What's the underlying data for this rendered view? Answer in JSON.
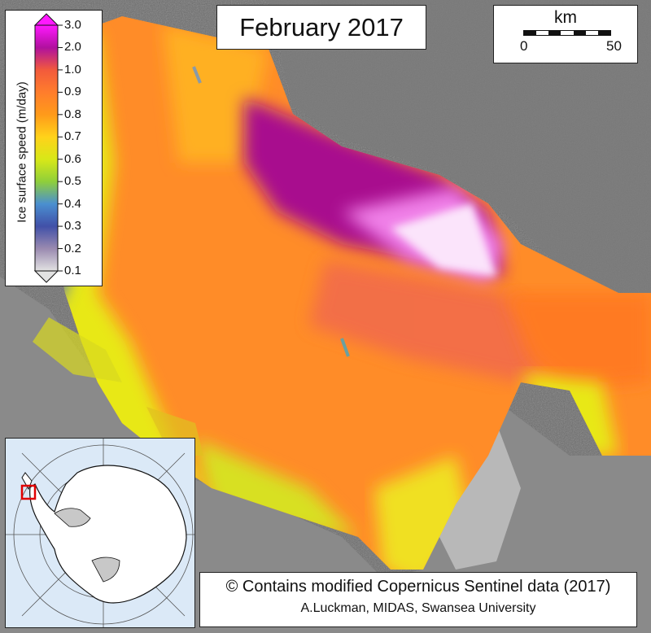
{
  "title": "February 2017",
  "scale_bar": {
    "unit": "km",
    "labels": [
      "0",
      "50"
    ]
  },
  "legend": {
    "title": "Ice surface speed (m/day)",
    "ticks": [
      "3.0",
      "2.0",
      "1.0",
      "0.9",
      "0.8",
      "0.7",
      "0.6",
      "0.5",
      "0.4",
      "0.3",
      "0.2",
      "0.1"
    ],
    "colors": [
      "#ff18ff",
      "#b0109e",
      "#f25a3c",
      "#ff7d2c",
      "#ff9a1a",
      "#ffd21a",
      "#d8e818",
      "#8fcf3a",
      "#4a8fd0",
      "#4150a8",
      "#9a8ab0",
      "#e2e2e2"
    ]
  },
  "credit": {
    "line1": "© Contains modified Copernicus Sentinel data (2017)",
    "line2": "A.Luckman, MIDAS, Swansea University"
  },
  "inset_map": {
    "region_marker_color": "#e00000"
  }
}
